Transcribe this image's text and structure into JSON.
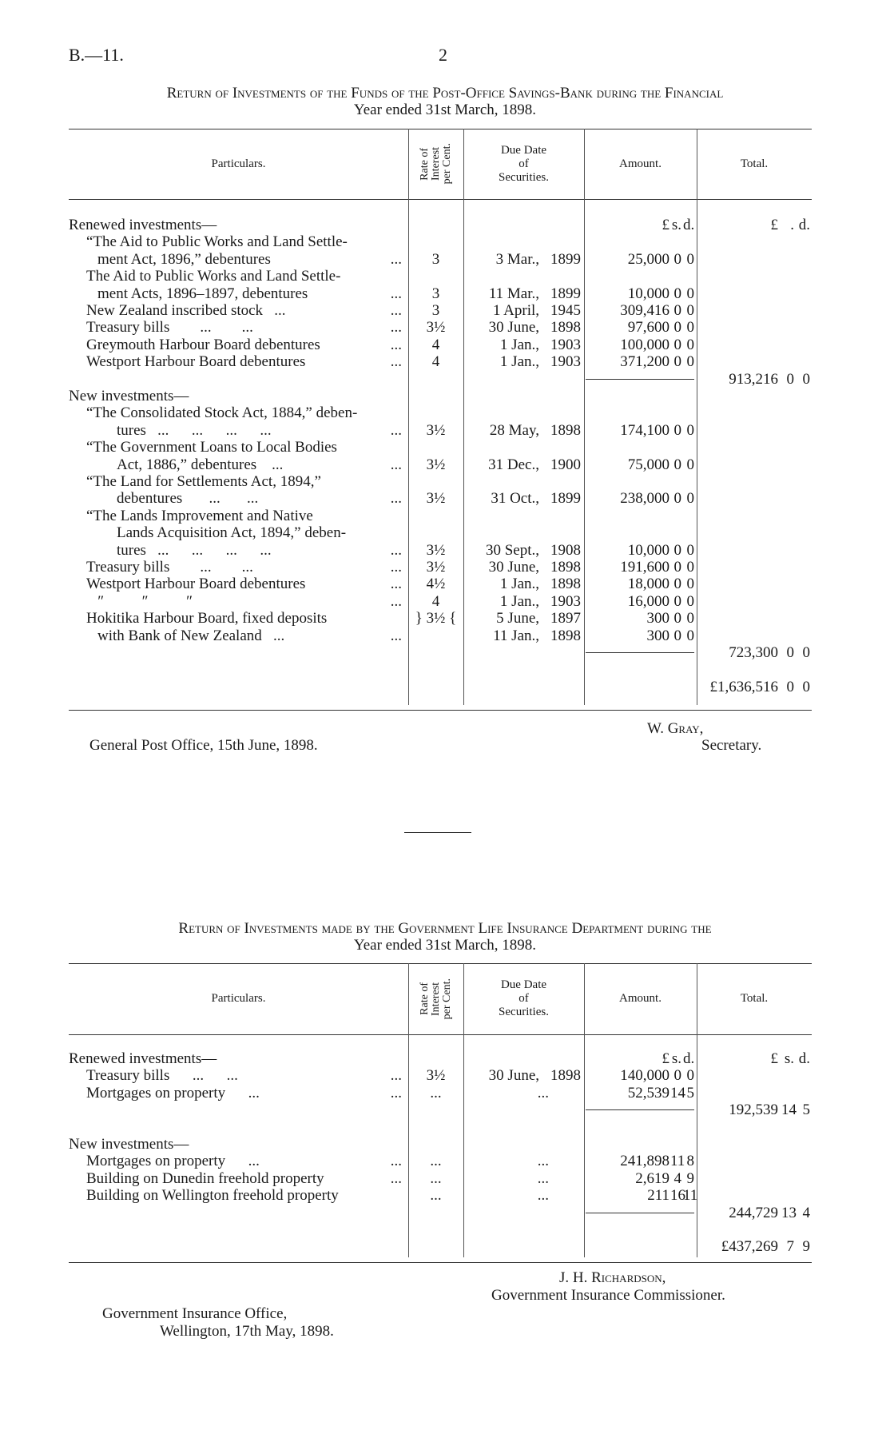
{
  "page_header": {
    "ref": "B.—11.",
    "page_number": "2"
  },
  "table1": {
    "title_line1": "Return of Investments of the Funds of the Post-Office Savings-Bank during the Financial",
    "title_line2": "Year ended 31st March, 1898.",
    "headers": {
      "particulars": "Particulars.",
      "rate": [
        "Rate of",
        "Interest",
        "per Cent."
      ],
      "due": [
        "Due Date",
        "of",
        "Securities."
      ],
      "amount": "Amount.",
      "total": "Total."
    },
    "lines": [
      {
        "text": "Renewed investments—",
        "indent": 0,
        "amt": [
          "£",
          "s.",
          "d."
        ],
        "tot": [
          "£",
          ".",
          "d."
        ]
      },
      {
        "text": "“The Aid to Public Works and Land Settle-",
        "indent": 1
      },
      {
        "text": "ment Act, 1896,” debentures",
        "indent": 2,
        "leader": "...",
        "rate": "3",
        "dm": "3 Mar.,",
        "yr": "1899",
        "amt": [
          "25,000",
          "0",
          "0"
        ]
      },
      {
        "text": "The Aid to Public Works and Land Settle-",
        "indent": 1
      },
      {
        "text": "ment Acts, 1896–1897, debentures",
        "indent": 2,
        "leader": "...",
        "rate": "3",
        "dm": "11 Mar.,",
        "yr": "1899",
        "amt": [
          "10,000",
          "0",
          "0"
        ]
      },
      {
        "text": "New Zealand inscribed stock   ...",
        "indent": 1,
        "leader": "...",
        "rate": "3",
        "dm": "1 April,",
        "yr": "1945",
        "amt": [
          "309,416",
          "0",
          "0"
        ]
      },
      {
        "text": "Treasury bills        ...        ...",
        "indent": 1,
        "leader": "...",
        "rate": "3½",
        "dm": "30 June,",
        "yr": "1898",
        "amt": [
          "97,600",
          "0",
          "0"
        ]
      },
      {
        "text": "Greymouth Harbour Board debentures",
        "indent": 1,
        "leader": "...",
        "rate": "4",
        "dm": "1 Jan.,",
        "yr": "1903",
        "amt": [
          "100,000",
          "0",
          "0"
        ]
      },
      {
        "text": "Westport Harbour Board debentures",
        "indent": 1,
        "leader": "...",
        "rate": "4",
        "dm": "1 Jan.,",
        "yr": "1903",
        "amt": [
          "371,200",
          "0",
          "0"
        ]
      },
      {
        "rule": true,
        "tot": [
          "913,216",
          "0",
          "0"
        ]
      },
      {
        "text": "New investments—",
        "indent": 0
      },
      {
        "text": "“The Consolidated Stock Act, 1884,” deben-",
        "indent": 1
      },
      {
        "text": "tures   ...      ...      ...      ...",
        "indent": 3,
        "leader": "...",
        "rate": "3½",
        "dm": "28 May,",
        "yr": "1898",
        "amt": [
          "174,100",
          "0",
          "0"
        ]
      },
      {
        "text": "“The Government Loans to Local Bodies",
        "indent": 1
      },
      {
        "text": "Act, 1886,” debentures    ...",
        "indent": 3,
        "leader": "...",
        "rate": "3½",
        "dm": "31 Dec.,",
        "yr": "1900",
        "amt": [
          "75,000",
          "0",
          "0"
        ]
      },
      {
        "text": "“The Land for Settlements Act, 1894,”",
        "indent": 1
      },
      {
        "text": "debentures       ...       ...",
        "indent": 3,
        "leader": "...",
        "rate": "3½",
        "dm": "31 Oct.,",
        "yr": "1899",
        "amt": [
          "238,000",
          "0",
          "0"
        ]
      },
      {
        "text": "“The Lands Improvement and Native",
        "indent": 1
      },
      {
        "text": "Lands Acquisition Act, 1894,” deben-",
        "indent": 3
      },
      {
        "text": "tures   ...      ...      ...      ...",
        "indent": 3,
        "leader": "...",
        "rate": "3½",
        "dm": "30 Sept.,",
        "yr": "1908",
        "amt": [
          "10,000",
          "0",
          "0"
        ]
      },
      {
        "text": "Treasury bills        ...        ...",
        "indent": 1,
        "leader": "...",
        "rate": "3½",
        "dm": "30 June,",
        "yr": "1898",
        "amt": [
          "191,600",
          "0",
          "0"
        ]
      },
      {
        "text": "Westport Harbour Board debentures",
        "indent": 1,
        "leader": "...",
        "rate": "4½",
        "dm": "1 Jan.,",
        "yr": "1898",
        "amt": [
          "18,000",
          "0",
          "0"
        ]
      },
      {
        "text": "   ″          ″          ″",
        "indent": 1,
        "leader": "...",
        "rate": "4",
        "dm": "1 Jan.,",
        "yr": "1903",
        "amt": [
          "16,000",
          "0",
          "0"
        ]
      },
      {
        "text": "Hokitika Harbour Board, fixed deposits",
        "indent": 1,
        "rate": "} 3½ {",
        "dm": "5 June,",
        "yr": "1897",
        "amt": [
          "300",
          "0",
          "0"
        ]
      },
      {
        "text": "with Bank of New Zealand   ...",
        "indent": 2,
        "leader": "...",
        "dm": "11 Jan.,",
        "yr": "1898",
        "amt": [
          "300",
          "0",
          "0"
        ]
      },
      {
        "rule": true,
        "tot": [
          "723,300",
          "0",
          "0"
        ]
      },
      {},
      {
        "tot": [
          "£1,636,516",
          "0",
          "0"
        ]
      }
    ],
    "signature": {
      "place_date": "General Post Office, 15th June, 1898.",
      "name": "W. Gray,",
      "title": "Secretary."
    }
  },
  "table2": {
    "title_line1": "Return of Investments made by the Government Life Insurance Department during the",
    "title_line2": "Year ended 31st March, 1898.",
    "headers": {
      "particulars": "Particulars.",
      "rate": [
        "Rate of",
        "Interest",
        "per Cent."
      ],
      "due": [
        "Due Date",
        "of",
        "Securities."
      ],
      "amount": "Amount.",
      "total": "Total."
    },
    "lines": [
      {
        "text": "Renewed investments—",
        "indent": 0,
        "amt": [
          "£",
          "s.",
          "d."
        ],
        "tot": [
          "£",
          "s.",
          "d."
        ]
      },
      {
        "text": "Treasury bills      ...      ...",
        "indent": 1,
        "leader": "...",
        "rate": "3½",
        "dm": "30 June,",
        "yr": "1898",
        "amt": [
          "140,000",
          "0",
          "0"
        ]
      },
      {
        "text": "Mortgages on property      ...",
        "indent": 1,
        "leader": "...",
        "rate": "...",
        "yr": "...",
        "amt": [
          "52,539",
          "14",
          "5"
        ]
      },
      {
        "rule": true,
        "tot": [
          "192,539",
          "14",
          "5"
        ]
      },
      {},
      {
        "text": "New investments—",
        "indent": 0
      },
      {
        "text": "Mortgages on property      ...",
        "indent": 1,
        "leader": "...",
        "rate": "...",
        "yr": "...",
        "amt": [
          "241,898",
          "11",
          "8"
        ]
      },
      {
        "text": "Building on Dunedin freehold property",
        "indent": 1,
        "leader": "...",
        "rate": "...",
        "yr": "...",
        "amt": [
          "2,619",
          "4",
          "9"
        ]
      },
      {
        "text": "Building on Wellington freehold property",
        "indent": 1,
        "rate": "...",
        "yr": "...",
        "amt": [
          "211",
          "16",
          "11"
        ]
      },
      {
        "rule": true,
        "tot": [
          "244,729",
          "13",
          "4"
        ]
      },
      {},
      {
        "tot": [
          "£437,269",
          "7",
          "9"
        ]
      }
    ],
    "signature": {
      "name": "J. H. Richardson,",
      "title": "Government Insurance Commissioner.",
      "office": "Government Insurance Office,",
      "place_date": "Wellington, 17th May, 1898."
    }
  }
}
